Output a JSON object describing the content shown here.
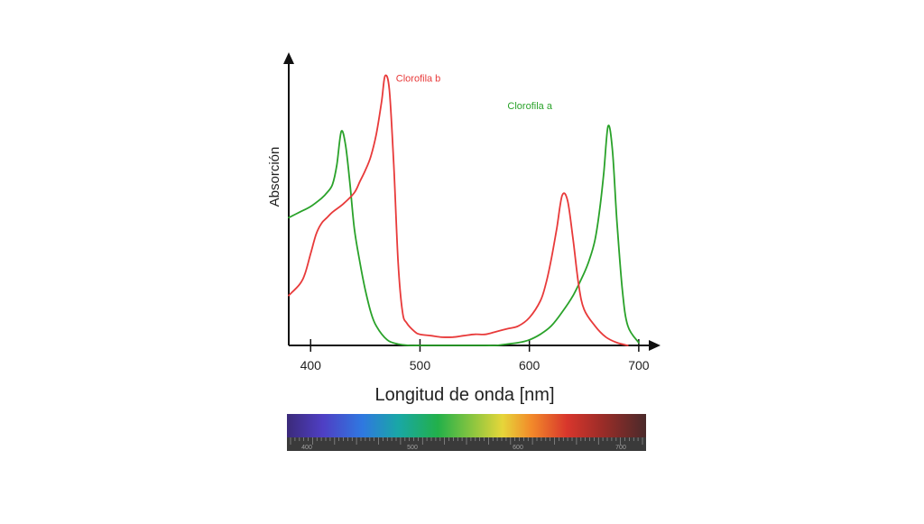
{
  "chart_data": {
    "type": "line",
    "title": "",
    "xlabel": "Longitud de onda [nm]",
    "ylabel": "Absorción",
    "xlim": [
      380,
      710
    ],
    "ylim": [
      0,
      100
    ],
    "x_ticks": [
      400,
      500,
      600,
      700
    ],
    "x_tick_labels": [
      "400",
      "500",
      "600",
      "700"
    ],
    "grid": false,
    "y_tick_labels": false,
    "series": [
      {
        "name": "Clorofila a",
        "color": "#2aa22a",
        "x": [
          380,
          390,
          400,
          410,
          415,
          420,
          424,
          428,
          432,
          436,
          440,
          445,
          450,
          455,
          460,
          470,
          480,
          490,
          500,
          510,
          520,
          530,
          540,
          550,
          560,
          570,
          580,
          590,
          600,
          610,
          620,
          630,
          640,
          650,
          655,
          660,
          664,
          668,
          672,
          676,
          680,
          685,
          690,
          700
        ],
        "y": [
          46,
          48,
          50,
          53,
          55,
          58,
          65,
          77,
          72,
          58,
          42,
          30,
          20,
          12,
          7,
          2,
          0.5,
          0,
          0,
          0,
          0,
          0,
          0,
          0,
          0,
          0,
          0.5,
          1,
          2,
          4,
          7,
          12,
          18,
          26,
          31,
          38,
          48,
          62,
          79,
          70,
          45,
          20,
          7,
          1
        ]
      },
      {
        "name": "Clorofila b",
        "color": "#e83a3a",
        "x": [
          380,
          390,
          395,
          400,
          405,
          410,
          415,
          420,
          430,
          440,
          445,
          450,
          455,
          460,
          465,
          468,
          472,
          476,
          480,
          484,
          488,
          495,
          500,
          510,
          520,
          530,
          540,
          550,
          560,
          570,
          580,
          590,
          600,
          610,
          615,
          620,
          625,
          630,
          635,
          640,
          645,
          650,
          660,
          670,
          680,
          690
        ],
        "y": [
          18,
          22,
          26,
          33,
          40,
          44,
          46,
          48,
          51,
          55,
          59,
          63,
          68,
          76,
          88,
          97,
          92,
          65,
          30,
          12,
          8,
          5,
          4,
          3.5,
          3,
          3,
          3.5,
          4,
          4,
          5,
          6,
          7,
          10,
          16,
          22,
          31,
          42,
          54,
          52,
          38,
          22,
          13,
          7,
          3,
          1,
          0
        ]
      }
    ],
    "annotations": [
      {
        "text": "Clorofila b",
        "x": 478,
        "y": 95,
        "color": "#e83a3a"
      },
      {
        "text": "Clorofila a",
        "x": 580,
        "y": 85,
        "color": "#2aa22a"
      }
    ],
    "spectrum_bar": {
      "labels": [
        "400",
        "500",
        "600",
        "700"
      ]
    }
  }
}
